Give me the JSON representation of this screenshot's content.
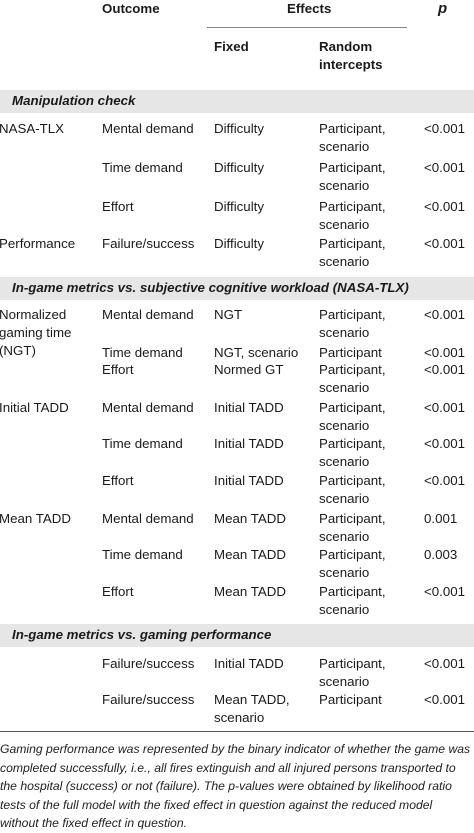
{
  "header": {
    "outcome": "Outcome",
    "effects": "Effects",
    "p": "p",
    "fixed": "Fixed",
    "random_line1": "Random",
    "random_line2": "intercepts"
  },
  "sections": [
    {
      "title": "Manipulation check"
    },
    {
      "title": "In-game metrics vs. subjective cognitive workload (NASA-TLX)"
    },
    {
      "title": "In-game metrics vs. gaming performance"
    }
  ],
  "rows": [
    {
      "group": [
        "NASA-TLX"
      ],
      "outcome": [
        "Mental demand"
      ],
      "fixed": [
        "Difficulty"
      ],
      "random": [
        "Participant,",
        "scenario"
      ],
      "p": "<0.001"
    },
    {
      "group": [],
      "outcome": [
        "Time demand"
      ],
      "fixed": [
        "Difficulty"
      ],
      "random": [
        "Participant,",
        "scenario"
      ],
      "p": "<0.001"
    },
    {
      "group": [],
      "outcome": [
        "Effort"
      ],
      "fixed": [
        "Difficulty"
      ],
      "random": [
        "Participant,",
        "scenario"
      ],
      "p": "<0.001"
    },
    {
      "group": [
        "Performance"
      ],
      "outcome": [
        "Failure/success"
      ],
      "fixed": [
        "Difficulty"
      ],
      "random": [
        "Participant,",
        "scenario"
      ],
      "p": "<0.001"
    },
    {
      "group": [
        "Normalized",
        "gaming time",
        "(NGT)"
      ],
      "outcome": [
        "Mental demand"
      ],
      "fixed": [
        "NGT"
      ],
      "random": [
        "Participant,",
        "scenario"
      ],
      "p": "<0.001"
    },
    {
      "group": [],
      "outcome": [
        "Time demand"
      ],
      "fixed": [
        "NGT, scenario"
      ],
      "random": [
        "Participant"
      ],
      "p": "<0.001"
    },
    {
      "group": [],
      "outcome": [
        "Effort"
      ],
      "fixed": [
        "Normed GT"
      ],
      "random": [
        "Participant,",
        "scenario"
      ],
      "p": "<0.001"
    },
    {
      "group": [
        "Initial TADD"
      ],
      "outcome": [
        "Mental demand"
      ],
      "fixed": [
        "Initial TADD"
      ],
      "random": [
        "Participant,",
        "scenario"
      ],
      "p": "<0.001"
    },
    {
      "group": [],
      "outcome": [
        "Time demand"
      ],
      "fixed": [
        "Initial TADD"
      ],
      "random": [
        "Participant,",
        "scenario"
      ],
      "p": "<0.001"
    },
    {
      "group": [],
      "outcome": [
        "Effort"
      ],
      "fixed": [
        "Initial TADD"
      ],
      "random": [
        "Participant,",
        "scenario"
      ],
      "p": "<0.001"
    },
    {
      "group": [
        "Mean TADD"
      ],
      "outcome": [
        "Mental demand"
      ],
      "fixed": [
        "Mean TADD"
      ],
      "random": [
        "Participant,",
        "scenario"
      ],
      "p": "0.001"
    },
    {
      "group": [],
      "outcome": [
        "Time demand"
      ],
      "fixed": [
        "Mean TADD"
      ],
      "random": [
        "Participant,",
        "scenario"
      ],
      "p": "0.003"
    },
    {
      "group": [],
      "outcome": [
        "Effort"
      ],
      "fixed": [
        "Mean TADD"
      ],
      "random": [
        "Participant,",
        "scenario"
      ],
      "p": "<0.001"
    },
    {
      "group": [],
      "outcome": [
        "Failure/success"
      ],
      "fixed": [
        "Initial TADD"
      ],
      "random": [
        "Participant,",
        "scenario"
      ],
      "p": "<0.001"
    },
    {
      "group": [],
      "outcome": [
        "Failure/success"
      ],
      "fixed": [
        "Mean TADD,",
        "scenario"
      ],
      "random": [
        "Participant"
      ],
      "p": "<0.001"
    }
  ],
  "footnote": [
    "Gaming performance was represented by the binary indicator of whether the game was",
    "completed successfully, i.e., all fires extinguish and all injured persons transported to",
    "the hospital (success) or not (failure). The p-values were obtained by likelihood ratio",
    "tests of the full model with the fixed effect in question against the reduced model",
    "without the fixed effect in question."
  ]
}
